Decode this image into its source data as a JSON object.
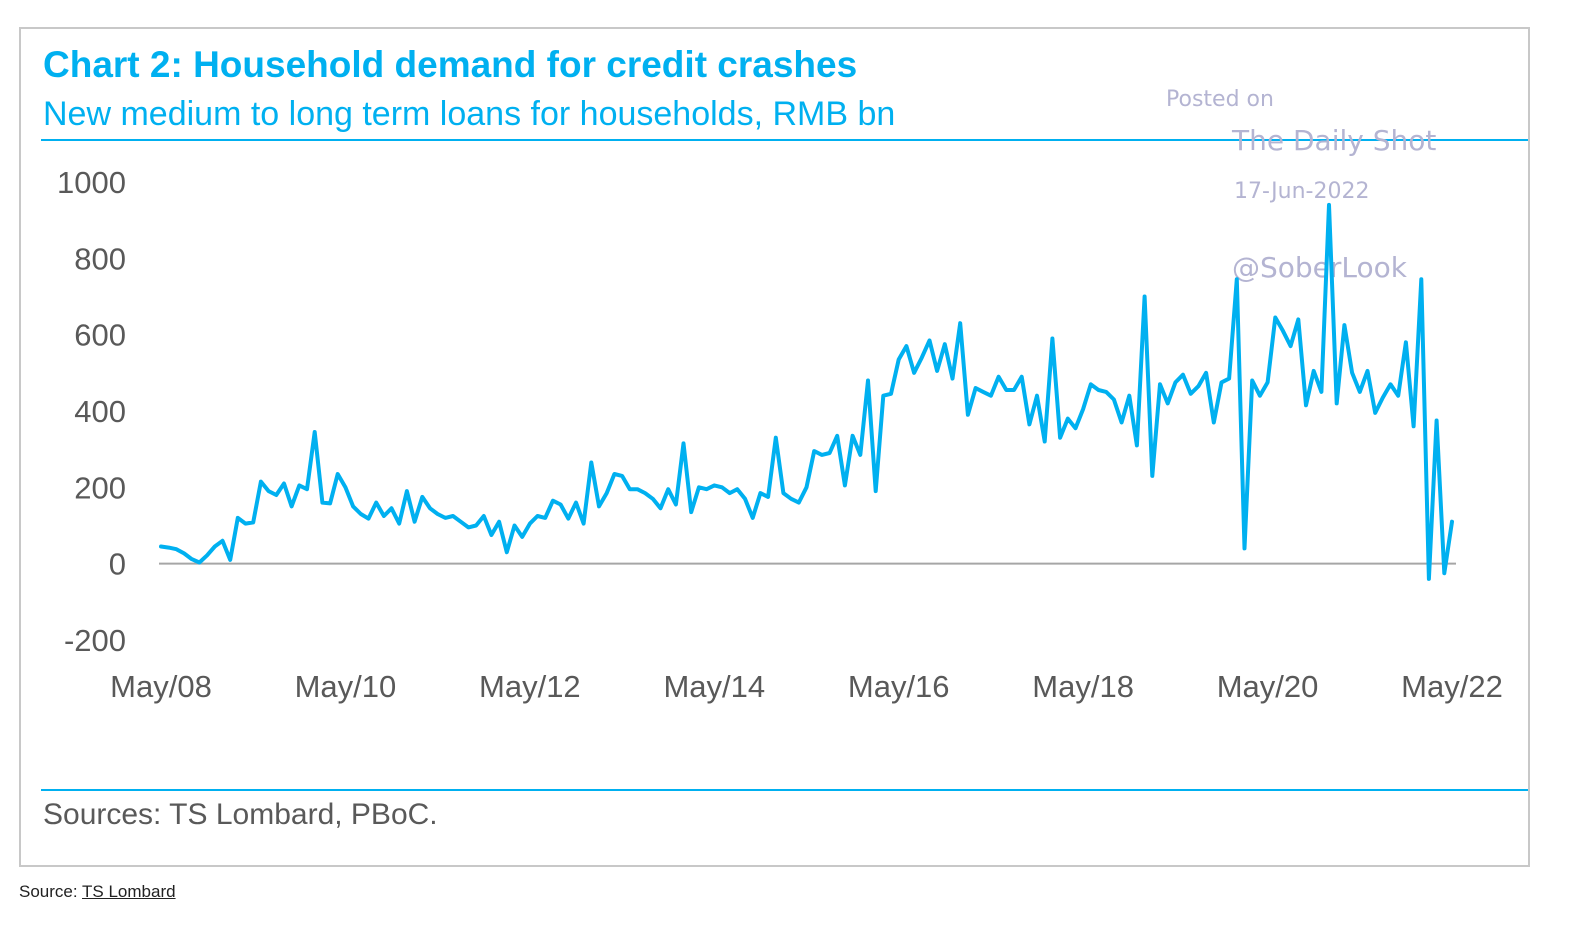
{
  "colors": {
    "accent": "#00b0f0",
    "axis_text": "#595959",
    "zero_line": "#a6a6a6",
    "watermark": "#b4b4d2",
    "frame": "#c8c8c8"
  },
  "watermark": {
    "line1": "Posted on",
    "line2": "The Daily Shot",
    "line3": "17-Jun-2022",
    "line4": "@SoberLook"
  },
  "chart_data": {
    "type": "line",
    "title": "Chart 2: Household demand for credit crashes",
    "subtitle": "New medium to long term loans for households, RMB bn",
    "source_note": "Sources: TS Lombard, PBoC.",
    "xlabel": "",
    "ylabel": "",
    "ylim": [
      -200,
      1000
    ],
    "yticks": [
      1000,
      800,
      600,
      400,
      200,
      0,
      -200
    ],
    "ytick_labels": [
      "1000",
      "800",
      "600",
      "400",
      "200",
      "0",
      "-200"
    ],
    "x_start": "May/08",
    "x_end": "May/22",
    "xtick_labels": [
      "May/08",
      "May/10",
      "May/12",
      "May/14",
      "May/16",
      "May/18",
      "May/20",
      "May/22"
    ],
    "grid": false,
    "series": [
      {
        "name": "New medium to long term loans for households",
        "values": [
          45,
          42,
          38,
          27,
          12,
          3,
          22,
          45,
          60,
          10,
          120,
          105,
          108,
          215,
          190,
          180,
          210,
          150,
          205,
          195,
          345,
          160,
          158,
          235,
          200,
          150,
          130,
          118,
          160,
          125,
          145,
          105,
          190,
          110,
          175,
          145,
          130,
          120,
          125,
          110,
          95,
          100,
          125,
          75,
          110,
          30,
          100,
          70,
          105,
          125,
          120,
          165,
          155,
          118,
          160,
          105,
          265,
          150,
          185,
          235,
          230,
          195,
          195,
          185,
          170,
          145,
          195,
          155,
          315,
          135,
          200,
          195,
          205,
          200,
          185,
          195,
          170,
          120,
          185,
          175,
          330,
          185,
          170,
          160,
          200,
          295,
          285,
          290,
          335,
          205,
          335,
          285,
          480,
          190,
          440,
          445,
          535,
          570,
          500,
          540,
          585,
          505,
          575,
          485,
          630,
          390,
          460,
          450,
          440,
          490,
          455,
          455,
          490,
          365,
          440,
          320,
          590,
          330,
          380,
          355,
          405,
          470,
          455,
          450,
          430,
          370,
          440,
          310,
          700,
          230,
          470,
          420,
          475,
          495,
          445,
          465,
          500,
          370,
          475,
          485,
          745,
          40,
          480,
          440,
          475,
          645,
          610,
          570,
          640,
          415,
          505,
          450,
          940,
          420,
          625,
          500,
          450,
          505,
          395,
          435,
          470,
          440,
          580,
          360,
          745,
          -40,
          375,
          -25,
          110
        ]
      }
    ]
  },
  "page_source": {
    "prefix": "Source:",
    "link_text": "TS Lombard"
  }
}
